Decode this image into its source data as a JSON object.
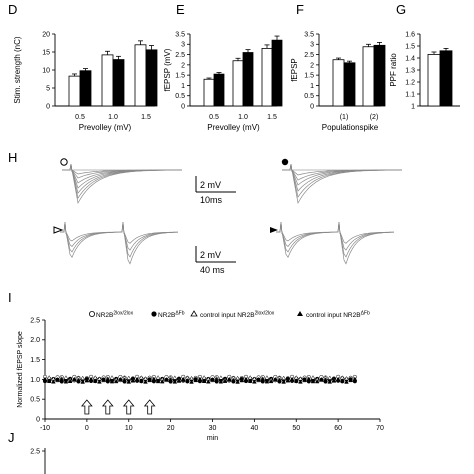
{
  "panels": {
    "D": "D",
    "E": "E",
    "F": "F",
    "G": "G",
    "H": "H",
    "I": "I",
    "J": "J"
  },
  "colors": {
    "control": "#ffffff",
    "mutant": "#000000",
    "trace": "#8a8a8a",
    "stroke": "#000000"
  },
  "scalebars": {
    "top_v": "2 mV",
    "top_t": "10ms",
    "bot_v": "2 mV",
    "bot_t": "40 ms"
  },
  "legend": {
    "open_circle": "NR2B",
    "open_circle_sup": "2lox/2lox",
    "filled_circle": "NR2B",
    "filled_circle_sup": "ΔFb",
    "open_triangle": "control input NR2B",
    "open_triangle_sup": "2lox/2lox",
    "filled_triangle": "control input NR2B",
    "filled_triangle_sup": "ΔFb"
  },
  "chart_data": [
    {
      "panel": "D",
      "type": "bar",
      "ylabel": "Stim. strength (nC)",
      "xlabel": "Prevolley (mV)",
      "categories": [
        "0.5",
        "1.0",
        "1.5"
      ],
      "ylim": [
        0,
        20
      ],
      "yticks": [
        "0",
        "5",
        "10",
        "15",
        "20"
      ],
      "series": [
        {
          "values": [
            8.3,
            14.2,
            17.0
          ],
          "errors": [
            0.6,
            1.0,
            1.1
          ],
          "fill": "#ffffff"
        },
        {
          "values": [
            9.8,
            12.9,
            15.6
          ],
          "errors": [
            0.6,
            0.9,
            1.2
          ],
          "fill": "#000000"
        }
      ]
    },
    {
      "panel": "E",
      "type": "bar",
      "ylabel": "fEPSP (mV)",
      "xlabel": "Prevolley (mV)",
      "categories": [
        "0.5",
        "1.0",
        "1.5"
      ],
      "ylim": [
        0,
        3.5
      ],
      "yticks": [
        "0",
        "0.5",
        "1",
        "1.5",
        "2",
        "2.5",
        "3",
        "3.5"
      ],
      "series": [
        {
          "values": [
            1.3,
            2.2,
            2.8
          ],
          "errors": [
            0.06,
            0.12,
            0.17
          ],
          "fill": "#ffffff"
        },
        {
          "values": [
            1.55,
            2.6,
            3.2
          ],
          "errors": [
            0.08,
            0.14,
            0.2
          ],
          "fill": "#000000"
        }
      ]
    },
    {
      "panel": "F",
      "type": "bar",
      "ylabel": "fEPSP",
      "xlabel": "Populationspike",
      "categories": [
        "(1)",
        "(2)"
      ],
      "ylim": [
        0,
        3.5
      ],
      "yticks": [
        "0",
        "0.5",
        "1",
        "1.5",
        "2",
        "2.5",
        "3",
        "3.5"
      ],
      "series": [
        {
          "values": [
            2.25,
            2.88
          ],
          "errors": [
            0.08,
            0.12
          ],
          "fill": "#ffffff"
        },
        {
          "values": [
            2.1,
            2.95
          ],
          "errors": [
            0.08,
            0.14
          ],
          "fill": "#000000"
        }
      ]
    },
    {
      "panel": "G",
      "type": "bar",
      "ylabel": "PPF ratio",
      "xlabel": "",
      "categories": [
        ""
      ],
      "ylim": [
        1.0,
        1.6
      ],
      "yticks": [
        "1",
        "1.1",
        "1.2",
        "1.3",
        "1.4",
        "1.5",
        "1.6"
      ],
      "series": [
        {
          "values": [
            1.43
          ],
          "errors": [
            0.02
          ],
          "fill": "#ffffff"
        },
        {
          "values": [
            1.46
          ],
          "errors": [
            0.02
          ],
          "fill": "#000000"
        }
      ]
    },
    {
      "panel": "I",
      "type": "scatter",
      "ylabel": "Normalized fEPSP slope",
      "xlabel": "min",
      "xlim": [
        -10,
        70
      ],
      "xticks": [
        "-10",
        "0",
        "10",
        "20",
        "30",
        "40",
        "50",
        "60",
        "70"
      ],
      "ylim": [
        0,
        2.5
      ],
      "yticks": [
        "0",
        "0.5",
        "1.0",
        "1.5",
        "2.0",
        "2.5"
      ],
      "baseline": 1.0,
      "x_start": -10,
      "x_end": 64,
      "x_step": 1,
      "arrows_at": [
        0,
        5,
        10,
        15
      ],
      "series": [
        {
          "symbol": "circle",
          "fill": "#ffffff"
        },
        {
          "symbol": "circle",
          "fill": "#000000"
        },
        {
          "symbol": "triangle",
          "fill": "#ffffff"
        },
        {
          "symbol": "triangle",
          "fill": "#000000"
        }
      ]
    },
    {
      "panel": "J",
      "type": "scatter",
      "ylabel": "",
      "xlabel": "",
      "ylim": [
        0,
        2.5
      ],
      "yticks": [
        "2.5"
      ]
    }
  ]
}
